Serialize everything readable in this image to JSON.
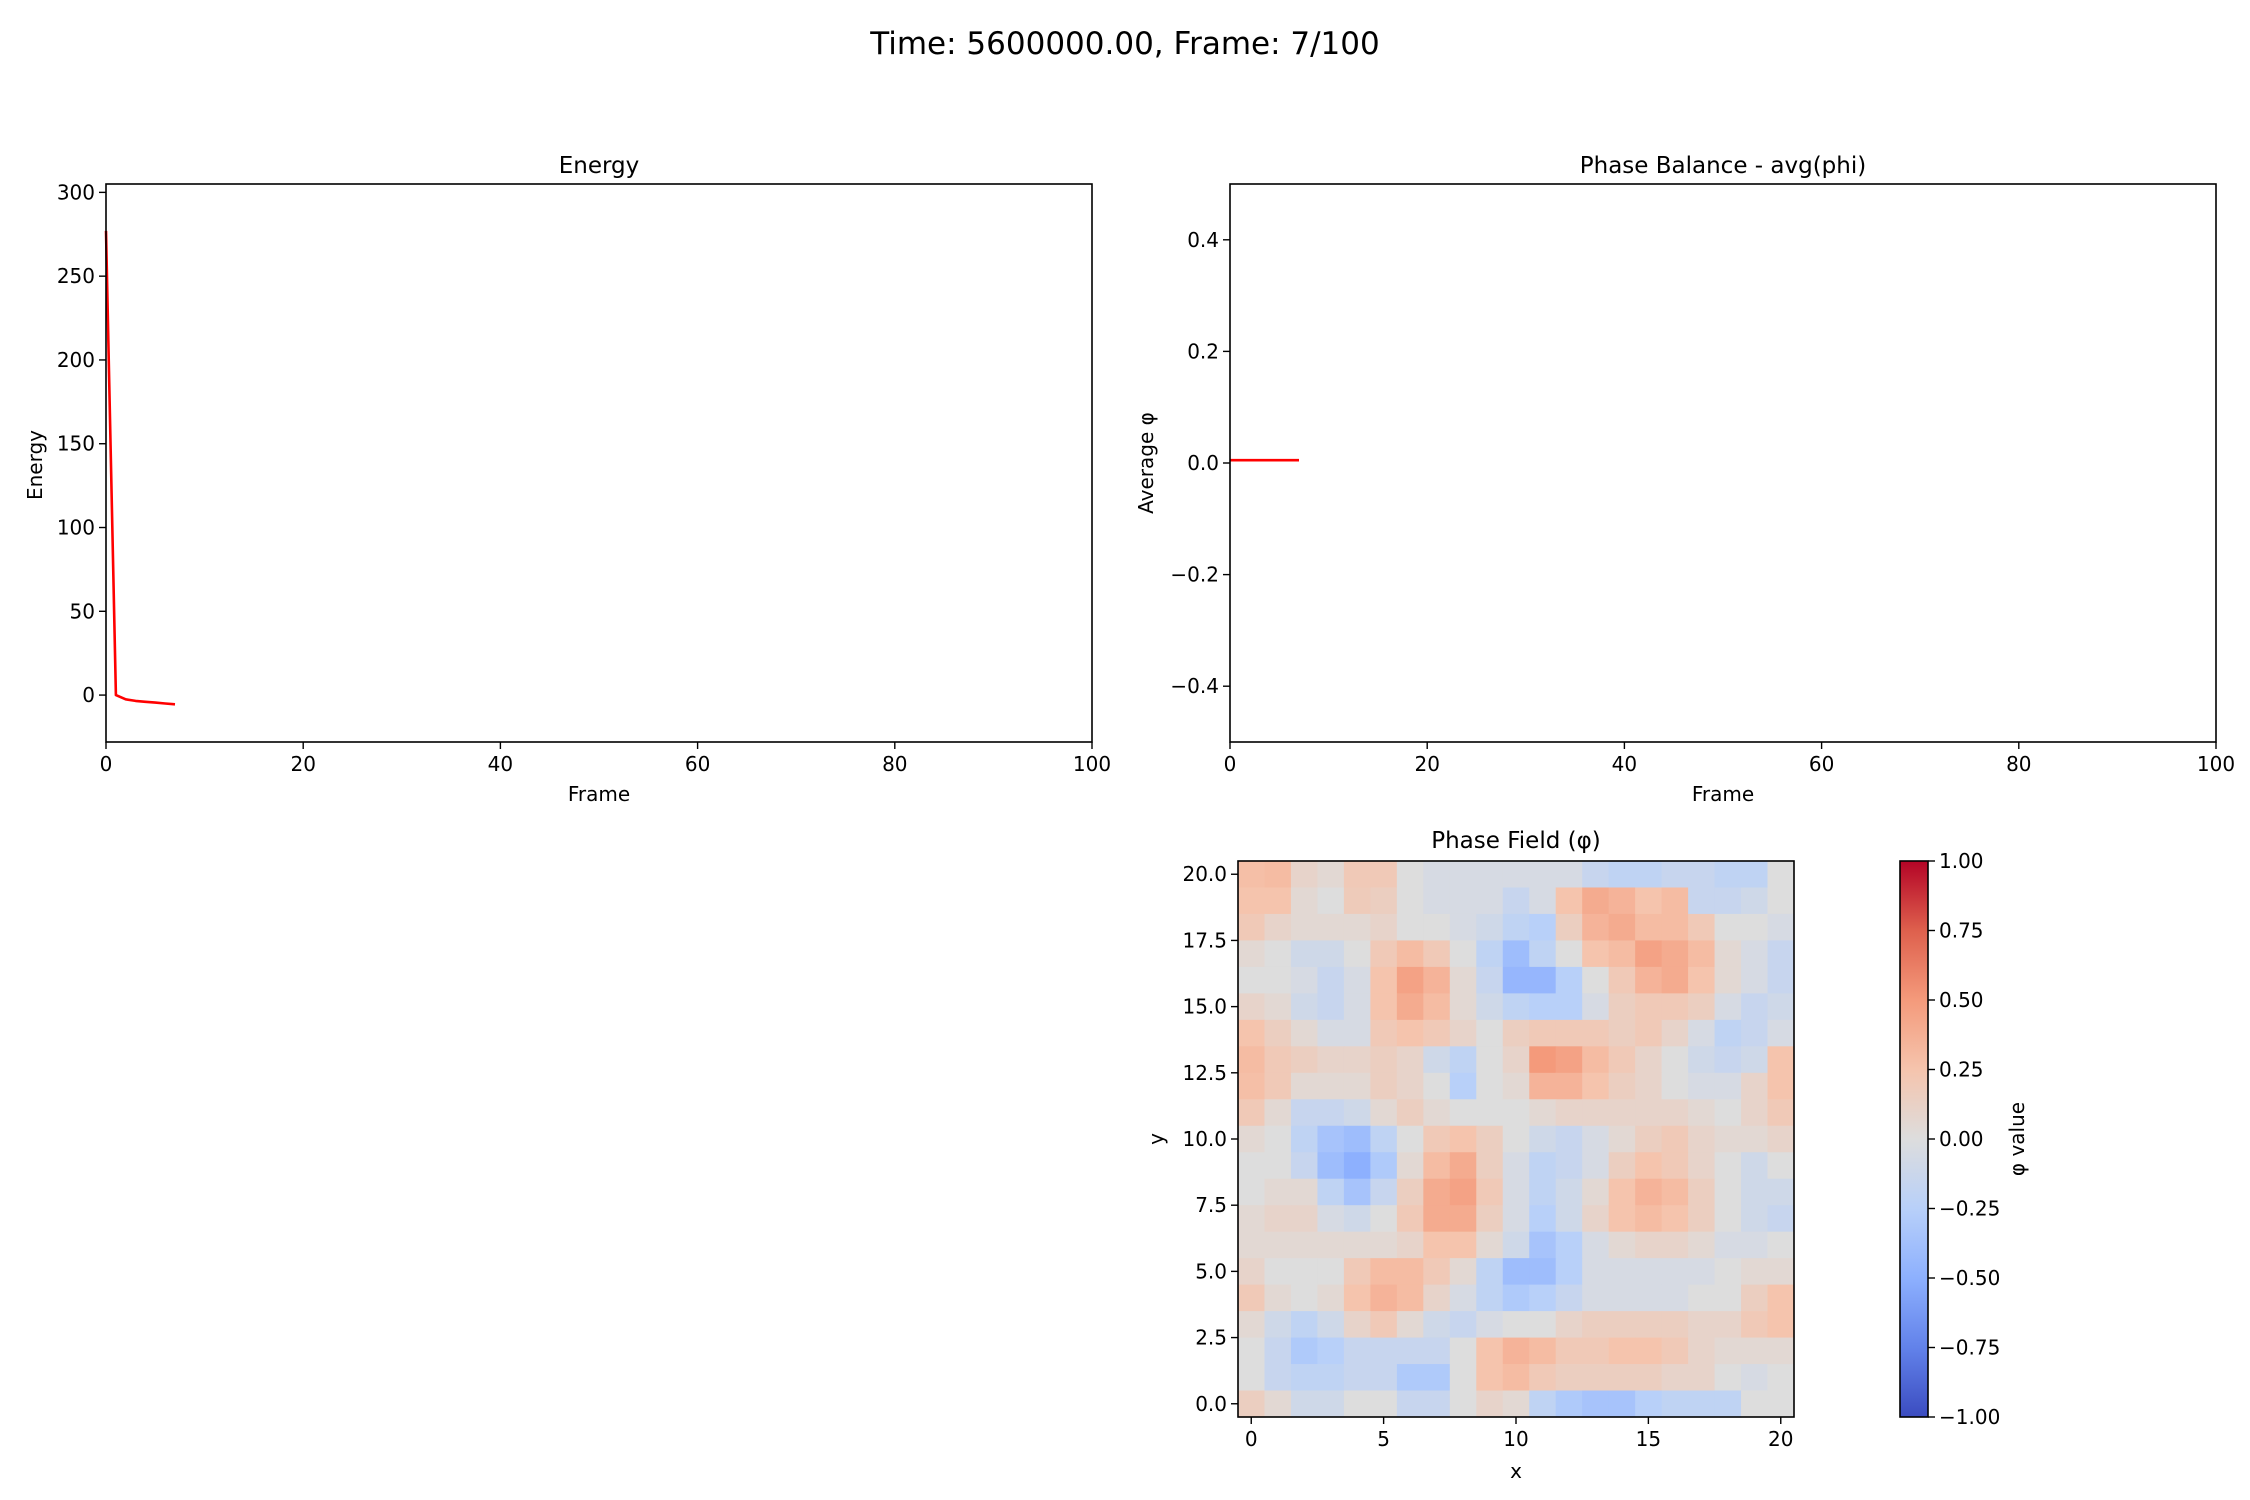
{
  "figure": {
    "suptitle": "Time: 5600000.00, Frame: 7/100"
  },
  "chart_data": [
    {
      "type": "line",
      "title": "Energy",
      "xlabel": "Frame",
      "ylabel": "Energy",
      "xlim": [
        0,
        100
      ],
      "ylim": [
        -28,
        305
      ],
      "xticks": [
        0,
        20,
        40,
        60,
        80,
        100
      ],
      "yticks": [
        0,
        50,
        100,
        150,
        200,
        250,
        300
      ],
      "grid": false,
      "series": [
        {
          "color": "#ff0000",
          "x": [
            0,
            1,
            2,
            3,
            4,
            5,
            6,
            7
          ],
          "y": [
            277,
            0,
            -2.5,
            -3.5,
            -4.0,
            -4.5,
            -5.0,
            -5.5
          ]
        }
      ]
    },
    {
      "type": "line",
      "title": "Phase Balance - avg(phi)",
      "xlabel": "Frame",
      "ylabel": "Average φ",
      "xlim": [
        0,
        100
      ],
      "ylim": [
        -0.5,
        0.5
      ],
      "xticks": [
        0,
        20,
        40,
        60,
        80,
        100
      ],
      "yticks": [
        -0.4,
        -0.2,
        0.0,
        0.2,
        0.4
      ],
      "ytick_labels": [
        "−0.4",
        "−0.2",
        "0.0",
        "0.2",
        "0.4"
      ],
      "grid": false,
      "series": [
        {
          "color": "#ff0000",
          "x": [
            0,
            1,
            2,
            3,
            4,
            5,
            6,
            7
          ],
          "y": [
            0.005,
            0.005,
            0.005,
            0.005,
            0.005,
            0.005,
            0.005,
            0.005
          ]
        }
      ]
    },
    {
      "type": "heatmap",
      "title": "Phase Field (φ)",
      "xlabel": "x",
      "ylabel": "y",
      "xlim": [
        -0.5,
        20.5
      ],
      "ylim": [
        -0.5,
        20.5
      ],
      "xticks": [
        0,
        5,
        10,
        15,
        20
      ],
      "yticks": [
        0.0,
        2.5,
        5.0,
        7.5,
        10.0,
        12.5,
        15.0,
        17.5,
        20.0
      ],
      "ytick_labels": [
        "0.0",
        "2.5",
        "5.0",
        "7.5",
        "10.0",
        "12.5",
        "15.0",
        "17.5",
        "20.0"
      ],
      "colormap": "coolwarm",
      "vmin": -1.0,
      "vmax": 1.0,
      "colorbar": {
        "label": "φ value",
        "ticks": [
          -1.0,
          -0.75,
          -0.5,
          -0.25,
          0.0,
          0.25,
          0.5,
          0.75,
          1.0
        ],
        "tick_labels": [
          "−1.00",
          "−0.75",
          "−0.50",
          "−0.25",
          "0.00",
          "0.25",
          "0.50",
          "0.75",
          "1.00"
        ]
      },
      "rows_from_top": [
        [
          0.28,
          0.3,
          0.1,
          0.05,
          0.2,
          0.2,
          0.0,
          -0.05,
          -0.05,
          -0.05,
          -0.05,
          -0.05,
          -0.05,
          -0.15,
          -0.2,
          -0.2,
          -0.15,
          -0.15,
          -0.2,
          -0.2,
          0.0
        ],
        [
          0.25,
          0.25,
          0.05,
          0.0,
          0.18,
          0.15,
          0.0,
          -0.05,
          -0.05,
          -0.05,
          -0.15,
          -0.05,
          0.25,
          0.4,
          0.35,
          0.25,
          0.3,
          -0.15,
          -0.15,
          -0.1,
          0.0
        ],
        [
          0.2,
          0.1,
          0.05,
          0.05,
          0.05,
          0.1,
          0.0,
          0.0,
          -0.05,
          -0.1,
          -0.2,
          -0.25,
          0.15,
          0.35,
          0.4,
          0.3,
          0.3,
          0.2,
          0.0,
          0.0,
          -0.05
        ],
        [
          0.05,
          0.0,
          -0.1,
          -0.1,
          0.0,
          0.2,
          0.3,
          0.2,
          0.0,
          -0.2,
          -0.4,
          -0.2,
          0.0,
          0.25,
          0.3,
          0.45,
          0.4,
          0.3,
          0.05,
          -0.05,
          -0.15
        ],
        [
          0.0,
          0.0,
          -0.05,
          -0.15,
          -0.05,
          0.25,
          0.45,
          0.35,
          0.05,
          -0.15,
          -0.45,
          -0.45,
          -0.25,
          0.0,
          0.2,
          0.35,
          0.4,
          0.25,
          0.05,
          -0.05,
          -0.15
        ],
        [
          0.1,
          0.05,
          -0.1,
          -0.15,
          -0.05,
          0.25,
          0.4,
          0.3,
          0.05,
          -0.1,
          -0.2,
          -0.25,
          -0.25,
          -0.05,
          0.15,
          0.2,
          0.2,
          0.15,
          -0.05,
          -0.15,
          -0.1
        ],
        [
          0.25,
          0.15,
          0.05,
          -0.05,
          -0.05,
          0.2,
          0.25,
          0.2,
          0.1,
          0.0,
          0.15,
          0.2,
          0.2,
          0.2,
          0.15,
          0.2,
          0.1,
          -0.05,
          -0.2,
          -0.15,
          -0.05
        ],
        [
          0.3,
          0.2,
          0.15,
          0.1,
          0.1,
          0.15,
          0.1,
          -0.1,
          -0.2,
          0.0,
          0.1,
          0.5,
          0.45,
          0.3,
          0.2,
          0.1,
          0.0,
          -0.1,
          -0.15,
          -0.1,
          0.25
        ],
        [
          0.28,
          0.2,
          0.05,
          0.05,
          0.05,
          0.15,
          0.1,
          0.0,
          -0.25,
          0.0,
          0.05,
          0.35,
          0.35,
          0.25,
          0.15,
          0.1,
          0.0,
          -0.05,
          -0.05,
          0.1,
          0.25
        ],
        [
          0.2,
          0.05,
          -0.15,
          -0.15,
          -0.1,
          0.05,
          0.15,
          0.05,
          0.0,
          0.0,
          0.0,
          0.05,
          0.1,
          0.1,
          0.1,
          0.1,
          0.1,
          0.05,
          0.0,
          0.1,
          0.2
        ],
        [
          0.05,
          0.0,
          -0.2,
          -0.35,
          -0.4,
          -0.2,
          0.0,
          0.2,
          0.25,
          0.15,
          0.0,
          -0.1,
          -0.15,
          -0.05,
          0.05,
          0.15,
          0.2,
          0.1,
          0.05,
          0.05,
          0.1
        ],
        [
          0.0,
          0.0,
          -0.15,
          -0.4,
          -0.5,
          -0.3,
          0.05,
          0.3,
          0.4,
          0.15,
          -0.05,
          -0.2,
          -0.15,
          -0.05,
          0.15,
          0.25,
          0.2,
          0.1,
          0.0,
          -0.1,
          0.0
        ],
        [
          0.0,
          0.05,
          0.05,
          -0.2,
          -0.35,
          -0.15,
          0.15,
          0.4,
          0.45,
          0.2,
          -0.05,
          -0.2,
          -0.1,
          0.05,
          0.25,
          0.35,
          0.3,
          0.15,
          0.0,
          -0.1,
          -0.1
        ],
        [
          0.05,
          0.1,
          0.1,
          -0.05,
          -0.1,
          0.0,
          0.2,
          0.4,
          0.4,
          0.15,
          -0.05,
          -0.25,
          -0.1,
          0.1,
          0.25,
          0.3,
          0.25,
          0.15,
          0.0,
          -0.1,
          -0.15
        ],
        [
          0.05,
          0.05,
          0.05,
          0.05,
          0.05,
          0.05,
          0.1,
          0.25,
          0.25,
          0.05,
          -0.1,
          -0.35,
          -0.25,
          -0.05,
          0.05,
          0.1,
          0.1,
          0.05,
          -0.05,
          -0.05,
          0.0
        ],
        [
          0.1,
          0.0,
          0.0,
          0.0,
          0.2,
          0.3,
          0.3,
          0.2,
          0.05,
          -0.2,
          -0.4,
          -0.4,
          -0.25,
          -0.05,
          -0.05,
          -0.05,
          -0.05,
          -0.05,
          0.0,
          0.05,
          0.05
        ],
        [
          0.2,
          0.05,
          0.0,
          0.05,
          0.25,
          0.35,
          0.3,
          0.1,
          -0.05,
          -0.2,
          -0.3,
          -0.25,
          -0.15,
          -0.05,
          -0.05,
          -0.05,
          -0.05,
          0.0,
          0.0,
          0.15,
          0.25
        ],
        [
          0.05,
          -0.1,
          -0.2,
          -0.1,
          0.1,
          0.2,
          0.05,
          -0.1,
          -0.15,
          -0.05,
          0.0,
          0.0,
          0.1,
          0.15,
          0.15,
          0.15,
          0.15,
          0.1,
          0.1,
          0.2,
          0.25
        ],
        [
          0.0,
          -0.15,
          -0.3,
          -0.25,
          -0.15,
          -0.15,
          -0.15,
          -0.15,
          0.0,
          0.25,
          0.35,
          0.3,
          0.2,
          0.2,
          0.25,
          0.25,
          0.2,
          0.1,
          0.05,
          0.05,
          0.05
        ],
        [
          0.0,
          -0.15,
          -0.2,
          -0.2,
          -0.15,
          -0.15,
          -0.3,
          -0.3,
          0.0,
          0.25,
          0.3,
          0.2,
          0.15,
          0.15,
          0.15,
          0.15,
          0.1,
          0.1,
          0.0,
          -0.05,
          0.0
        ],
        [
          0.15,
          0.05,
          -0.1,
          -0.1,
          0.0,
          0.0,
          -0.15,
          -0.15,
          0.0,
          0.1,
          0.05,
          -0.2,
          -0.3,
          -0.35,
          -0.35,
          -0.25,
          -0.2,
          -0.2,
          -0.2,
          0.0,
          0.0
        ]
      ]
    }
  ]
}
